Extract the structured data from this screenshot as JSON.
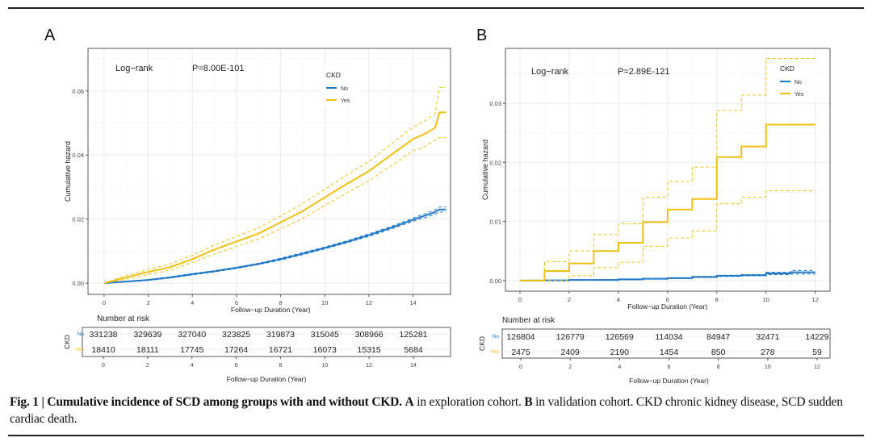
{
  "figure": {
    "caption_bold": "Fig. 1 | Cumulative incidence of SCD among groups with and without CKD.",
    "caption_a_label": "A",
    "caption_a_text": " in exploration cohort. ",
    "caption_b_label": "B",
    "caption_b_text": " in validation cohort. CKD chronic kidney disease, SCD sudden cardiac death."
  },
  "colors": {
    "No": "#1f78c8",
    "Yes": "#f0c010"
  },
  "chart_data": [
    {
      "panel": "A",
      "type": "line",
      "annotation_test": "Log−rank",
      "annotation_p": "P=8.00E-101",
      "xlabel": "Follow−up Duration (Year)",
      "ylabel": "Cumulative hazard",
      "xlim": [
        -0.73,
        15.7
      ],
      "ylim": [
        -0.0035,
        0.0733
      ],
      "xticks": [
        0,
        2,
        4,
        6,
        8,
        10,
        12,
        14
      ],
      "yticks": [
        0.0,
        0.02,
        0.04,
        0.06
      ],
      "ytick_labels": [
        "0.00",
        "0.02",
        "0.04",
        "0.06"
      ],
      "grid": true,
      "legend": {
        "title": "CKD",
        "placement": "top-right",
        "entries": [
          "No",
          "Yes"
        ]
      },
      "series": [
        {
          "name": "No",
          "x": [
            0,
            1,
            2,
            3,
            4,
            5,
            6,
            7,
            8,
            9,
            10,
            11,
            12,
            13,
            14,
            15,
            15.2,
            15.5
          ],
          "y": [
            0,
            0.0005,
            0.001,
            0.0018,
            0.0028,
            0.0037,
            0.0048,
            0.006,
            0.0075,
            0.0092,
            0.011,
            0.0129,
            0.015,
            0.0173,
            0.0198,
            0.0222,
            0.023,
            0.023
          ],
          "lower": [
            0,
            0.0004,
            0.0009,
            0.0016,
            0.0026,
            0.0035,
            0.0046,
            0.0058,
            0.0072,
            0.0089,
            0.0107,
            0.0126,
            0.0146,
            0.0169,
            0.0193,
            0.0215,
            0.0222,
            0.0222
          ],
          "upper": [
            0,
            0.0006,
            0.0011,
            0.002,
            0.003,
            0.0039,
            0.005,
            0.0062,
            0.0078,
            0.0095,
            0.0113,
            0.0132,
            0.0154,
            0.0177,
            0.0203,
            0.0229,
            0.0238,
            0.0238
          ]
        },
        {
          "name": "Yes",
          "x": [
            0,
            1,
            2,
            3,
            4,
            5,
            6,
            7,
            8,
            9,
            10,
            11,
            12,
            13,
            14,
            14.5,
            15,
            15.2,
            15.5
          ],
          "y": [
            0,
            0.0018,
            0.0035,
            0.005,
            0.0075,
            0.0105,
            0.013,
            0.0155,
            0.019,
            0.0225,
            0.0268,
            0.031,
            0.035,
            0.04,
            0.045,
            0.0465,
            0.0485,
            0.0533,
            0.0533
          ],
          "lower": [
            0,
            0.0012,
            0.0027,
            0.0041,
            0.0064,
            0.0091,
            0.0115,
            0.0138,
            0.017,
            0.0202,
            0.0243,
            0.0282,
            0.032,
            0.0366,
            0.0413,
            0.0425,
            0.0446,
            0.0455,
            0.0455
          ],
          "upper": [
            0,
            0.0024,
            0.0043,
            0.006,
            0.0087,
            0.0119,
            0.0146,
            0.0173,
            0.021,
            0.0248,
            0.0293,
            0.0338,
            0.038,
            0.0434,
            0.0487,
            0.0505,
            0.053,
            0.0611,
            0.0611
          ]
        }
      ],
      "risk_table": {
        "title": "Number at risk",
        "strata_label": "CKD",
        "times": [
          0,
          2,
          4,
          6,
          8,
          10,
          12,
          14
        ],
        "rows": [
          {
            "name": "No",
            "values": [
              "331238",
              "329639",
              "327040",
              "323825",
              "319873",
              "315045",
              "308966",
              "125281"
            ]
          },
          {
            "name": "Yes",
            "values": [
              "18410",
              "18111",
              "17745",
              "17264",
              "16721",
              "16073",
              "15315",
              "5684"
            ]
          }
        ],
        "xlabel": "Follow−up Duration (Year)"
      }
    },
    {
      "panel": "B",
      "type": "line",
      "annotation_test": "Log−rank",
      "annotation_p": "P=2.89E-121",
      "xlabel": "Follow−up Duration (Year)",
      "ylabel": "Cumulative hazard",
      "xlim": [
        -0.59,
        12.6
      ],
      "ylim": [
        -0.0018,
        0.0393
      ],
      "xticks": [
        0,
        2,
        4,
        6,
        8,
        10,
        12
      ],
      "yticks": [
        0.0,
        0.01,
        0.02,
        0.03
      ],
      "ytick_labels": [
        "0.00",
        "0.01",
        "0.02",
        "0.03"
      ],
      "grid": true,
      "legend": {
        "title": "CKD",
        "placement": "top-right",
        "entries": [
          "No",
          "Yes"
        ]
      },
      "series": [
        {
          "name": "No",
          "step": true,
          "x": [
            0,
            1,
            2,
            3,
            4,
            5,
            6,
            7,
            8,
            9,
            10,
            11,
            12
          ],
          "y": [
            0,
            2e-05,
            0.0001,
            0.0001,
            0.0002,
            0.0003,
            0.0004,
            0.0006,
            0.0008,
            0.0009,
            0.0012,
            0.0014,
            0.0014
          ],
          "lower": [
            0,
            0,
            5e-05,
            7e-05,
            0.00015,
            0.00024,
            0.00033,
            0.0005,
            0.0007,
            0.0008,
            0.001,
            0.0011,
            0.0011
          ],
          "upper": [
            0,
            4e-05,
            0.00015,
            0.00015,
            0.00025,
            0.00036,
            0.00047,
            0.0007,
            0.0009,
            0.001,
            0.0014,
            0.0017,
            0.0017
          ]
        },
        {
          "name": "Yes",
          "step": true,
          "x": [
            0,
            1,
            2,
            3,
            4,
            5,
            6,
            7,
            8,
            9,
            10,
            12
          ],
          "y": [
            0,
            0.0016,
            0.0029,
            0.005,
            0.0064,
            0.0099,
            0.012,
            0.0138,
            0.0209,
            0.0227,
            0.0264,
            0.0264
          ],
          "lower": [
            0,
            0,
            0.0008,
            0.0022,
            0.0031,
            0.0058,
            0.0072,
            0.0084,
            0.013,
            0.0141,
            0.0152,
            0.0152
          ],
          "upper": [
            0,
            0.0032,
            0.005,
            0.0078,
            0.0096,
            0.0141,
            0.0168,
            0.0192,
            0.0288,
            0.0314,
            0.0376,
            0.0376
          ]
        }
      ],
      "risk_table": {
        "title": "Number at risk",
        "strata_label": "CKD",
        "times": [
          0,
          2,
          4,
          6,
          8,
          10,
          12
        ],
        "rows": [
          {
            "name": "No",
            "values": [
              "126804",
              "126779",
              "126569",
              "114034",
              "84947",
              "32471",
              "14229"
            ]
          },
          {
            "name": "Yes",
            "values": [
              "2475",
              "2409",
              "2190",
              "1454",
              "850",
              "278",
              "59"
            ]
          }
        ],
        "xlabel": "Follow−up Duration (Year)"
      }
    }
  ]
}
